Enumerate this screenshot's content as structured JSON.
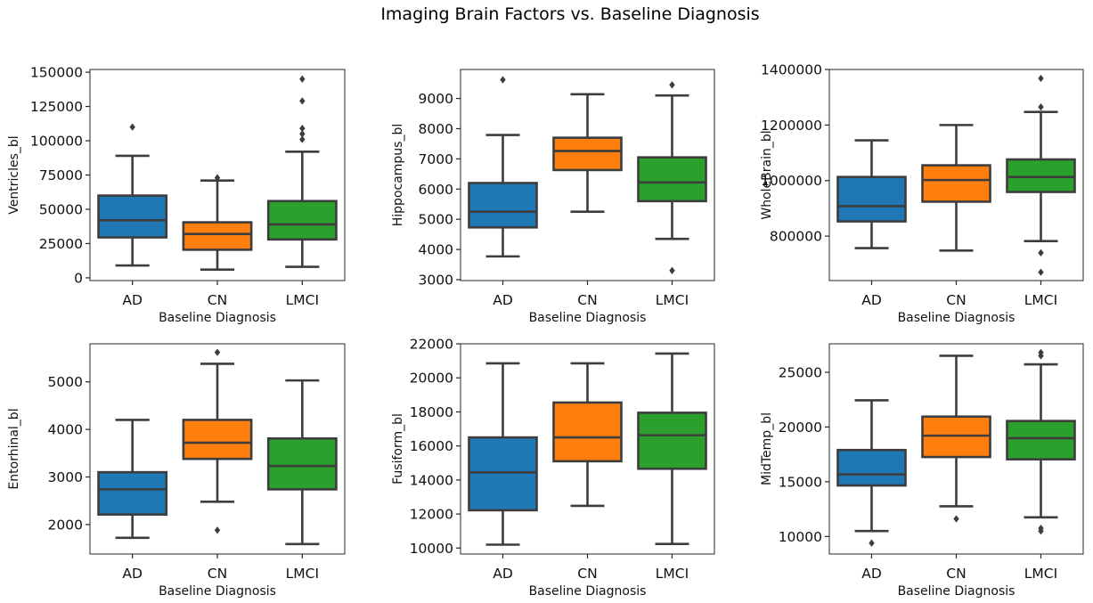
{
  "figure": {
    "title": "Imaging Brain Factors vs. Baseline Diagnosis"
  },
  "chart_data": [
    {
      "type": "box",
      "categories": [
        "AD",
        "CN",
        "LMCI"
      ],
      "colors": [
        "#1f77b4",
        "#ff7f0e",
        "#2ca02c"
      ],
      "xlabel": "Baseline Diagnosis",
      "ylabel": "Ventricles_bl",
      "ylim": [
        -2000,
        152000
      ],
      "yticks": [
        0,
        25000,
        50000,
        75000,
        100000,
        125000,
        150000
      ],
      "boxes": [
        {
          "whislo": 9000,
          "q1": 29500,
          "med": 42000,
          "q3": 60000,
          "whishi": 89000,
          "fliers": [
            110000
          ]
        },
        {
          "whislo": 6000,
          "q1": 20500,
          "med": 32000,
          "q3": 40500,
          "whishi": 71000,
          "fliers": [
            73000
          ]
        },
        {
          "whislo": 8000,
          "q1": 28000,
          "med": 39000,
          "q3": 56000,
          "whishi": 92000,
          "fliers": [
            101000,
            105000,
            109000,
            129000,
            145000
          ]
        }
      ]
    },
    {
      "type": "box",
      "categories": [
        "AD",
        "CN",
        "LMCI"
      ],
      "colors": [
        "#1f77b4",
        "#ff7f0e",
        "#2ca02c"
      ],
      "xlabel": "Baseline Diagnosis",
      "ylabel": "Hippocampus_bl",
      "ylim": [
        2970,
        9960
      ],
      "yticks": [
        3000,
        4000,
        5000,
        6000,
        7000,
        8000,
        9000
      ],
      "boxes": [
        {
          "whislo": 3770,
          "q1": 4730,
          "med": 5250,
          "q3": 6200,
          "whishi": 7790,
          "fliers": [
            9620
          ]
        },
        {
          "whislo": 5250,
          "q1": 6630,
          "med": 7260,
          "q3": 7700,
          "whishi": 9140,
          "fliers": []
        },
        {
          "whislo": 4350,
          "q1": 5600,
          "med": 6220,
          "q3": 7050,
          "whishi": 9100,
          "fliers": [
            3300,
            9450
          ]
        }
      ]
    },
    {
      "type": "box",
      "categories": [
        "AD",
        "CN",
        "LMCI"
      ],
      "colors": [
        "#1f77b4",
        "#ff7f0e",
        "#2ca02c"
      ],
      "xlabel": "Baseline Diagnosis",
      "ylabel": "WholeBrain_bl",
      "ylim": [
        640000,
        1400000
      ],
      "yticks": [
        800000,
        1000000,
        1200000,
        1400000
      ],
      "boxes": [
        {
          "whislo": 757000,
          "q1": 853000,
          "med": 908000,
          "q3": 1013000,
          "whishi": 1145000,
          "fliers": []
        },
        {
          "whislo": 748000,
          "q1": 924000,
          "med": 1002000,
          "q3": 1055000,
          "whishi": 1200000,
          "fliers": []
        },
        {
          "whislo": 782000,
          "q1": 959000,
          "med": 1013000,
          "q3": 1076000,
          "whishi": 1247000,
          "fliers": [
            670000,
            740000,
            1265000,
            1368000
          ]
        }
      ]
    },
    {
      "type": "box",
      "categories": [
        "AD",
        "CN",
        "LMCI"
      ],
      "colors": [
        "#1f77b4",
        "#ff7f0e",
        "#2ca02c"
      ],
      "xlabel": "Baseline Diagnosis",
      "ylabel": "Entorhinal_bl",
      "ylim": [
        1380,
        5800
      ],
      "yticks": [
        2000,
        3000,
        4000,
        5000
      ],
      "boxes": [
        {
          "whislo": 1720,
          "q1": 2210,
          "med": 2740,
          "q3": 3100,
          "whishi": 4200,
          "fliers": []
        },
        {
          "whislo": 2480,
          "q1": 3380,
          "med": 3720,
          "q3": 4200,
          "whishi": 5380,
          "fliers": [
            1880,
            5620
          ]
        },
        {
          "whislo": 1590,
          "q1": 2740,
          "med": 3230,
          "q3": 3810,
          "whishi": 5030,
          "fliers": []
        }
      ]
    },
    {
      "type": "box",
      "categories": [
        "AD",
        "CN",
        "LMCI"
      ],
      "colors": [
        "#1f77b4",
        "#ff7f0e",
        "#2ca02c"
      ],
      "xlabel": "Baseline Diagnosis",
      "ylabel": "Fusiform_bl",
      "ylim": [
        9650,
        22000
      ],
      "yticks": [
        10000,
        12000,
        14000,
        16000,
        18000,
        20000,
        22000
      ],
      "boxes": [
        {
          "whislo": 10200,
          "q1": 12220,
          "med": 14450,
          "q3": 16500,
          "whishi": 20850,
          "fliers": []
        },
        {
          "whislo": 12480,
          "q1": 15100,
          "med": 16500,
          "q3": 18550,
          "whishi": 20850,
          "fliers": []
        },
        {
          "whislo": 10240,
          "q1": 14660,
          "med": 16630,
          "q3": 17950,
          "whishi": 21430,
          "fliers": []
        }
      ]
    },
    {
      "type": "box",
      "categories": [
        "AD",
        "CN",
        "LMCI"
      ],
      "colors": [
        "#1f77b4",
        "#ff7f0e",
        "#2ca02c"
      ],
      "xlabel": "Baseline Diagnosis",
      "ylabel": "MidTemp_bl",
      "ylim": [
        8400,
        27600
      ],
      "yticks": [
        10000,
        15000,
        20000,
        25000
      ],
      "boxes": [
        {
          "whislo": 10500,
          "q1": 14660,
          "med": 15680,
          "q3": 17900,
          "whishi": 22440,
          "fliers": [
            9400
          ]
        },
        {
          "whislo": 12760,
          "q1": 17260,
          "med": 19210,
          "q3": 20950,
          "whishi": 26510,
          "fliers": [
            11610
          ]
        },
        {
          "whislo": 11750,
          "q1": 17050,
          "med": 18980,
          "q3": 20550,
          "whishi": 25720,
          "fliers": [
            10500,
            10750,
            26500,
            26800
          ]
        }
      ]
    }
  ]
}
